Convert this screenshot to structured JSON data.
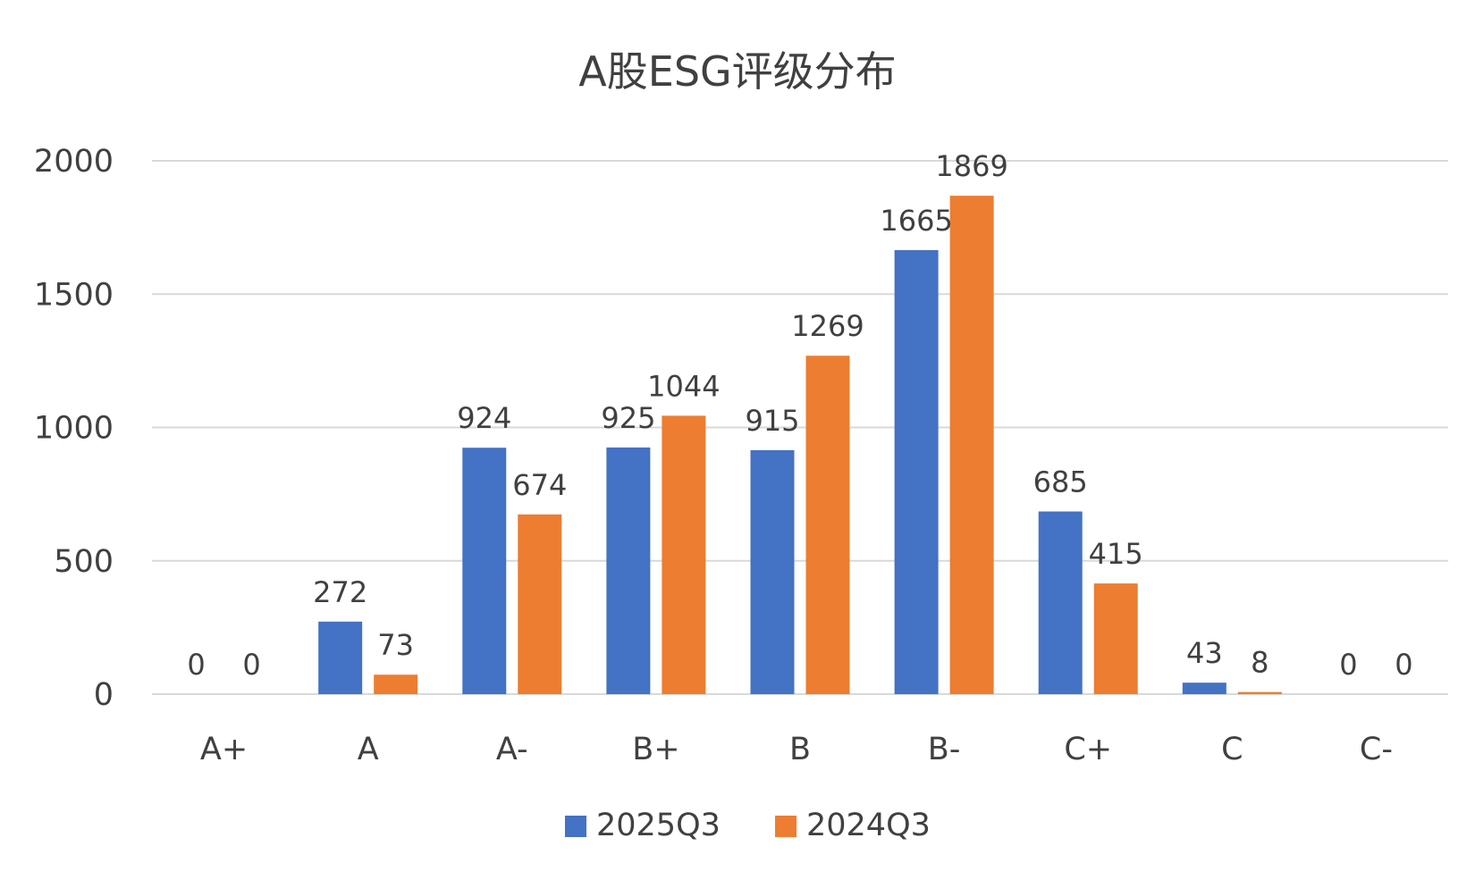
{
  "chart_data": {
    "type": "bar",
    "title": "A股ESG评级分布",
    "xlabel": "",
    "ylabel": "",
    "categories": [
      "A+",
      "A",
      "A-",
      "B+",
      "B",
      "B-",
      "C+",
      "C",
      "C-"
    ],
    "series": [
      {
        "name": "2025Q3",
        "color": "#4472c4",
        "values": [
          0,
          272,
          924,
          925,
          915,
          1665,
          685,
          43,
          0
        ]
      },
      {
        "name": "2024Q3",
        "color": "#ed7d31",
        "values": [
          0,
          73,
          674,
          1044,
          1269,
          1869,
          415,
          8,
          0
        ]
      }
    ],
    "ylim": [
      0,
      2000
    ],
    "yticks": [
      0,
      500,
      1000,
      1500,
      2000
    ],
    "grid": true,
    "data_labels": true,
    "legend_position": "bottom"
  }
}
